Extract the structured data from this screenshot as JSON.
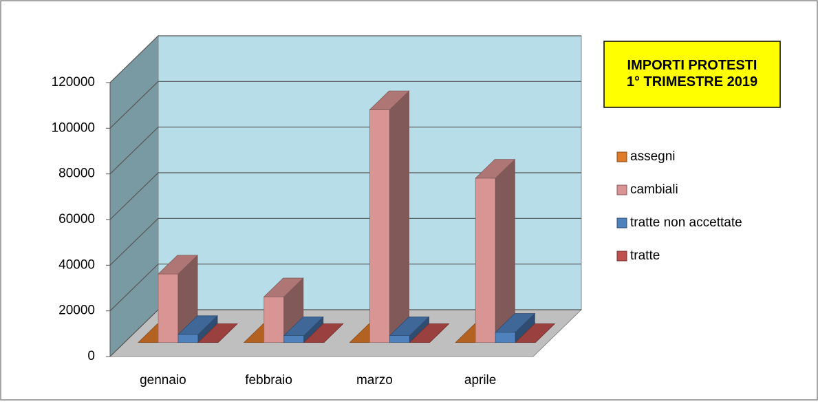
{
  "chart_data": {
    "type": "bar3d",
    "title": "IMPORTI PROTESTI\n1° TRIMESTRE 2019",
    "categories": [
      "gennaio",
      "febbraio",
      "marzo",
      "aprile"
    ],
    "series": [
      {
        "name": "assegni",
        "color": "#e07b2a",
        "values": [
          0,
          0,
          0,
          0
        ]
      },
      {
        "name": "cambiali",
        "color": "#d99594",
        "values": [
          30000,
          20000,
          102000,
          72000
        ]
      },
      {
        "name": "tratte non accettate",
        "color": "#4f81bd",
        "values": [
          3500,
          3000,
          3000,
          4500
        ]
      },
      {
        "name": "tratte",
        "color": "#c0504d",
        "values": [
          0,
          0,
          0,
          0
        ]
      }
    ],
    "ylim": [
      0,
      120000
    ],
    "yticks": [
      0,
      20000,
      40000,
      60000,
      80000,
      100000,
      120000
    ],
    "grid": true
  }
}
